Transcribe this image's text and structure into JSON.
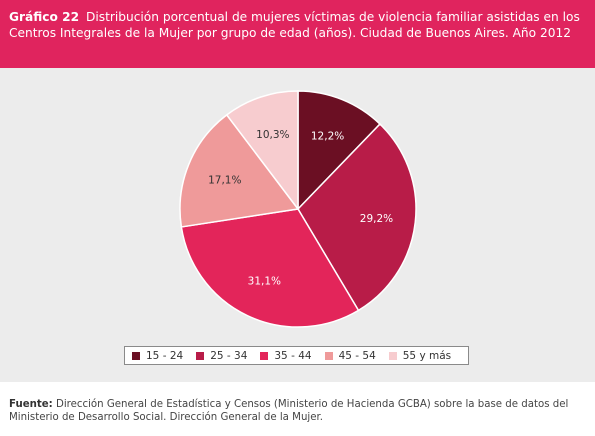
{
  "header": {
    "tag": "Gráfico 22",
    "title": "Distribución porcentual de mujeres víctimas de violencia familiar asistidas en los Centros Integrales de la Mujer por grupo de edad (años). Ciudad de Buenos Aires. Año 2012"
  },
  "chart_data": {
    "type": "pie",
    "title": "Distribución porcentual de mujeres víctimas de violencia familiar asistidas en los Centros Integrales de la Mujer por grupo de edad (años). Ciudad de Buenos Aires. Año 2012",
    "categories": [
      "15 - 24",
      "25 - 34",
      "35 - 44",
      "45 - 54",
      "55 y más"
    ],
    "values": [
      12.2,
      29.2,
      31.1,
      17.1,
      10.3
    ],
    "labels": [
      "12,2%",
      "29,2%",
      "31,1%",
      "17,1%",
      "10,3%"
    ],
    "colors": [
      "#6b0f23",
      "#b81c48",
      "#e3255a",
      "#ef9a9a",
      "#f7cccf"
    ],
    "label_colors": [
      "#ffffff",
      "#ffffff",
      "#ffffff",
      "#333333",
      "#333333"
    ],
    "legend_position": "bottom",
    "start_angle": "top, clockwise"
  },
  "footer": {
    "source_label": "Fuente:",
    "source_text": "Dirección General de Estadística y Censos (Ministerio de Hacienda GCBA) sobre la base de datos del Ministerio de Desarrollo Social. Dirección General de la Mujer."
  }
}
